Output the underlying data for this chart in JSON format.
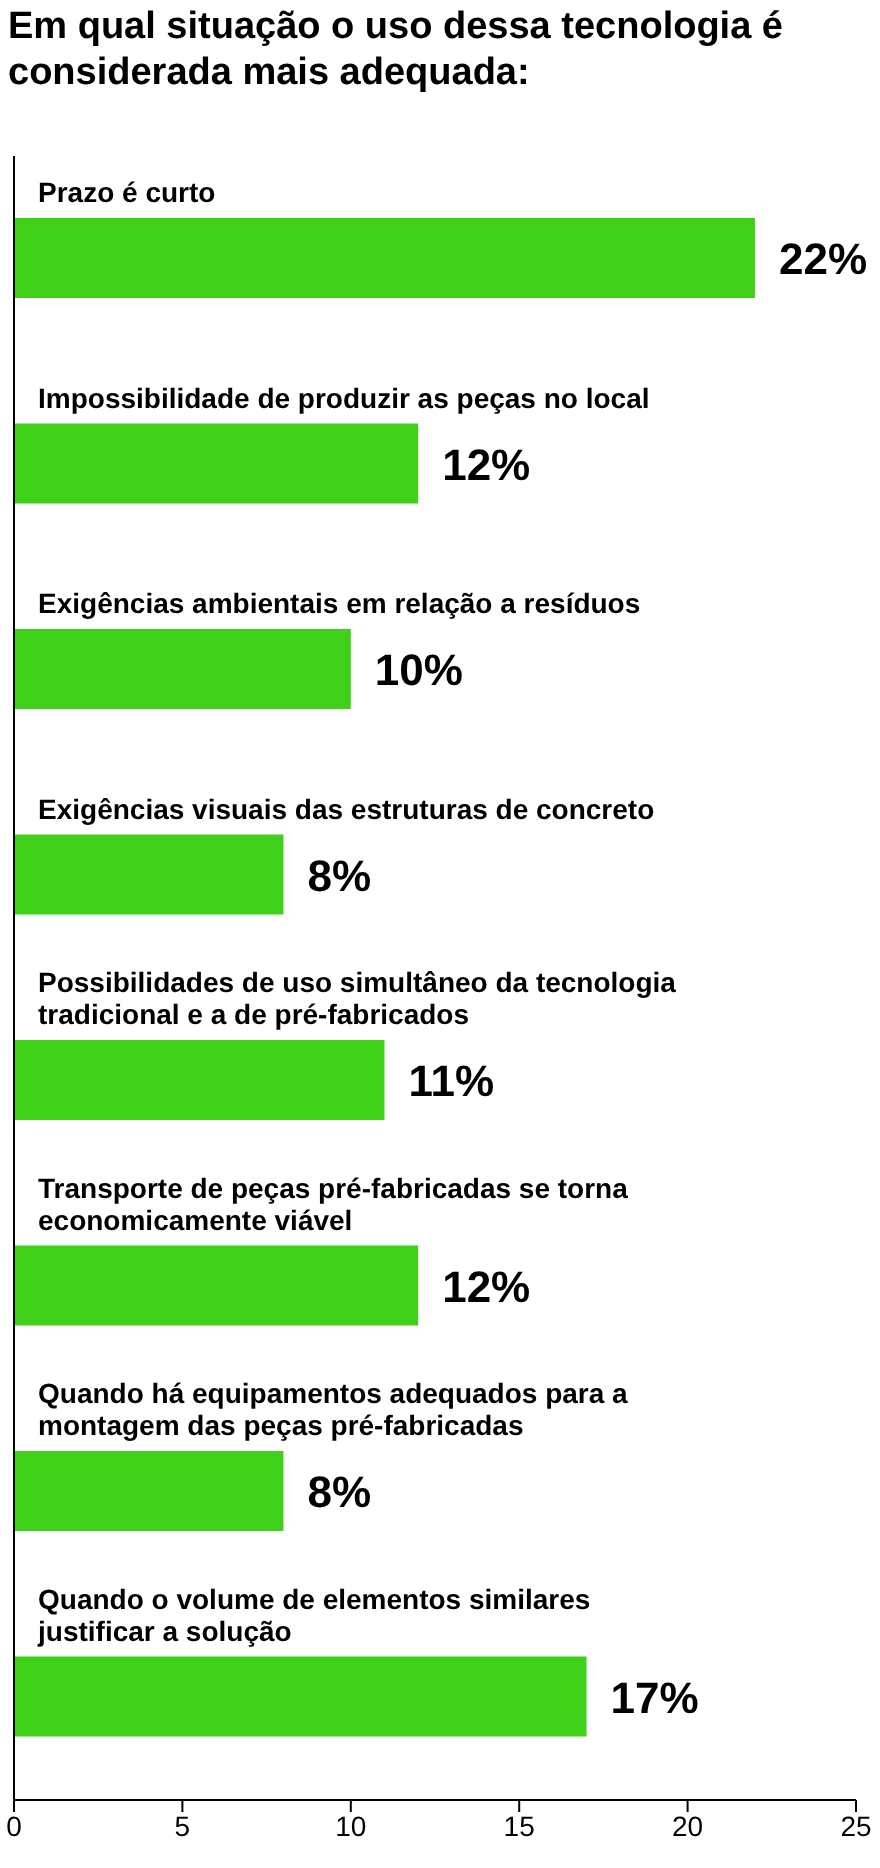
{
  "chart_data": {
    "type": "bar",
    "orientation": "horizontal",
    "title": "Em qual situação o uso dessa tecnologia é considerada mais adequada:",
    "categories": [
      "Prazo é curto",
      "Impossibilidade de produzir as peças no local",
      "Exigências ambientais em relação a resíduos",
      "Exigências visuais das estruturas de concreto",
      "Possibilidades de uso simultâneo da tecnologia tradicional e a de pré-fabricados",
      "Transporte de peças pré-fabricadas se torna economicamente viável",
      "Quando há equipamentos adequados para a montagem das peças pré-fabricadas",
      "Quando o volume de elementos similares justificar a solução"
    ],
    "values": [
      22,
      12,
      10,
      8,
      11,
      12,
      8,
      17
    ],
    "value_labels": [
      "22%",
      "12%",
      "10%",
      "8%",
      "11%",
      "12%",
      "8%",
      "17%"
    ],
    "color": "#3fd01a",
    "xlim": [
      0,
      25
    ],
    "xticks": [
      0,
      5,
      10,
      15,
      20,
      25
    ],
    "grid": false
  }
}
